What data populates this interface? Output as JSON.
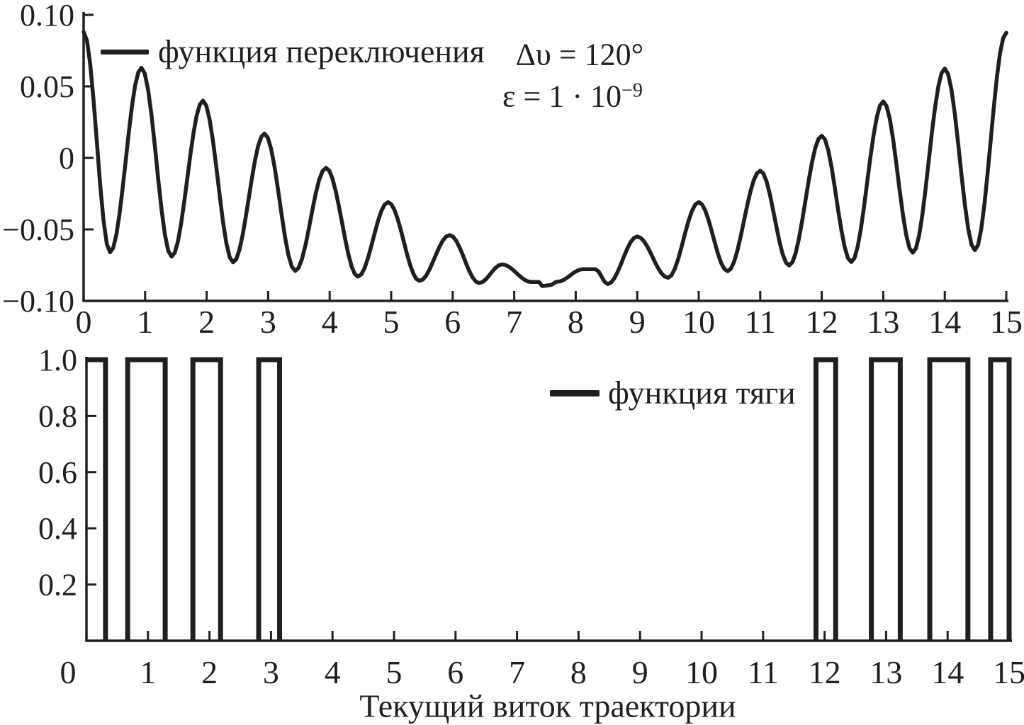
{
  "figure": {
    "background": "#ffffff",
    "ink_color": "#1f1f1f",
    "type": "two-panel scientific line figure"
  },
  "chart_data": [
    {
      "type": "line",
      "name": "switching-function",
      "legend": "функция переключения",
      "legend_position": "top-left-inside",
      "annotations": {
        "line1": "Δυ = 120°",
        "line2_base": "ε = 1 · 10",
        "line2_sup": "−9"
      },
      "xlim": [
        0,
        15
      ],
      "ylim": [
        -0.1,
        0.1
      ],
      "grid": false,
      "x_ticks": [
        0,
        1,
        2,
        3,
        4,
        5,
        6,
        7,
        8,
        9,
        10,
        11,
        12,
        13,
        14,
        15
      ],
      "x_tick_labels": [
        "0",
        "1",
        "2",
        "3",
        "4",
        "5",
        "6",
        "7",
        "8",
        "9",
        "10",
        "11",
        "12",
        "13",
        "14",
        "15"
      ],
      "y_ticks": [
        0.1,
        0.05,
        0,
        -0.05,
        -0.1
      ],
      "y_tick_labels": [
        "0.10",
        "0.05",
        "0",
        "−0.05",
        "−0.10"
      ],
      "points": [
        [
          0.0,
          0.088
        ],
        [
          0.43,
          -0.066
        ],
        [
          0.94,
          0.063
        ],
        [
          1.43,
          -0.069
        ],
        [
          1.94,
          0.04
        ],
        [
          2.43,
          -0.073
        ],
        [
          2.94,
          0.017
        ],
        [
          3.44,
          -0.079
        ],
        [
          3.94,
          -0.007
        ],
        [
          4.46,
          -0.083
        ],
        [
          4.95,
          -0.031
        ],
        [
          5.46,
          -0.086
        ],
        [
          5.95,
          -0.054
        ],
        [
          6.43,
          -0.0875
        ],
        [
          6.8,
          -0.0745
        ],
        [
          7.28,
          -0.0868
        ],
        [
          7.4,
          -0.0868
        ],
        [
          7.46,
          -0.0896
        ],
        [
          7.58,
          -0.089
        ],
        [
          7.7,
          -0.0866
        ],
        [
          8.12,
          -0.0778
        ],
        [
          8.32,
          -0.0778
        ],
        [
          8.52,
          -0.0882
        ],
        [
          9.0,
          -0.055
        ],
        [
          9.5,
          -0.0838
        ],
        [
          10.0,
          -0.031
        ],
        [
          10.47,
          -0.0792
        ],
        [
          11.0,
          -0.009
        ],
        [
          11.47,
          -0.0752
        ],
        [
          12.0,
          0.0155
        ],
        [
          12.48,
          -0.0728
        ],
        [
          13.0,
          0.0395
        ],
        [
          13.48,
          -0.0663
        ],
        [
          14.0,
          0.0625
        ],
        [
          14.49,
          -0.0645
        ],
        [
          15.0,
          0.0875
        ]
      ]
    },
    {
      "type": "pulse",
      "name": "thrust-function",
      "legend": "функция тяги",
      "legend_position": "center-inside",
      "xlabel": "Текущий виток траектории",
      "xlim": [
        0,
        15
      ],
      "ylim": [
        0,
        1
      ],
      "grid": false,
      "x_ticks": [
        0,
        1,
        2,
        3,
        4,
        5,
        6,
        7,
        8,
        9,
        10,
        11,
        12,
        13,
        14,
        15
      ],
      "x_tick_labels": [
        "0",
        "1",
        "2",
        "3",
        "4",
        "5",
        "6",
        "7",
        "8",
        "9",
        "10",
        "11",
        "12",
        "13",
        "14",
        "15"
      ],
      "y_ticks": [
        1.0,
        0.8,
        0.6,
        0.4,
        0.2
      ],
      "y_tick_labels": [
        "1.0",
        "0.8",
        "0.6",
        "0.4",
        "0.2"
      ],
      "level": 1,
      "pulses": [
        [
          0.0,
          0.31
        ],
        [
          0.67,
          1.28
        ],
        [
          1.73,
          2.18
        ],
        [
          2.8,
          3.14
        ],
        [
          11.86,
          12.18
        ],
        [
          12.76,
          13.23
        ],
        [
          13.71,
          14.33
        ],
        [
          14.7,
          15.0
        ]
      ]
    }
  ]
}
